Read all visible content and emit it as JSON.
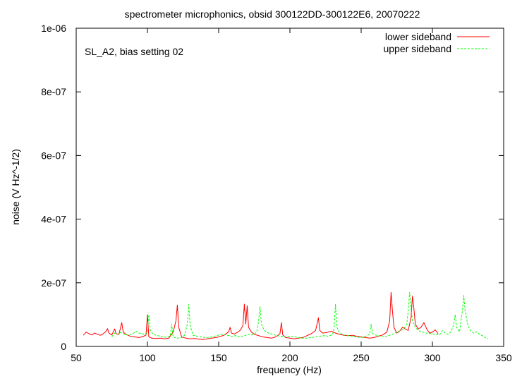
{
  "chart_data": {
    "type": "line",
    "title": "spectrometer microphonics, obsid 300122DD-300122E6, 20070222",
    "annotation": "SL_A2, bias setting 02",
    "xlabel": "frequency (Hz)",
    "ylabel": "noise (V Hz^-1/2)",
    "xlim": [
      50,
      350
    ],
    "ylim": [
      0,
      1e-06
    ],
    "x_ticks": [
      50,
      100,
      150,
      200,
      250,
      300,
      350
    ],
    "x_tick_labels": [
      "50",
      "100",
      "150",
      "200",
      "250",
      "300",
      "350"
    ],
    "y_ticks": [
      0,
      2e-07,
      4e-07,
      6e-07,
      8e-07,
      1e-06
    ],
    "y_tick_labels": [
      "0",
      "2e-07",
      "4e-07",
      "6e-07",
      "8e-07",
      "1e-06"
    ],
    "grid": false,
    "legend_position": "top-right",
    "series": [
      {
        "name": "lower sideband",
        "color": "#ff0000",
        "dash": "solid",
        "points": [
          [
            55,
            3.5e-08
          ],
          [
            57,
            4.5e-08
          ],
          [
            59,
            4e-08
          ],
          [
            61,
            3.6e-08
          ],
          [
            63,
            4.2e-08
          ],
          [
            65,
            3.8e-08
          ],
          [
            67,
            3.5e-08
          ],
          [
            69,
            4e-08
          ],
          [
            71,
            4.8e-08
          ],
          [
            72,
            5.6e-08
          ],
          [
            73,
            4.2e-08
          ],
          [
            75,
            3.6e-08
          ],
          [
            77,
            5.5e-08
          ],
          [
            78,
            4e-08
          ],
          [
            80,
            3.8e-08
          ],
          [
            82,
            7.5e-08
          ],
          [
            83,
            4.5e-08
          ],
          [
            85,
            3.8e-08
          ],
          [
            88,
            3.2e-08
          ],
          [
            91,
            3e-08
          ],
          [
            94,
            2.8e-08
          ],
          [
            97,
            3.1e-08
          ],
          [
            99,
            3.6e-08
          ],
          [
            100,
            1e-07
          ],
          [
            101,
            3e-08
          ],
          [
            103,
            2.6e-08
          ],
          [
            106,
            2.5e-08
          ],
          [
            109,
            2.6e-08
          ],
          [
            112,
            2.4e-08
          ],
          [
            115,
            2.6e-08
          ],
          [
            118,
            4.5e-08
          ],
          [
            120,
            8e-08
          ],
          [
            121,
            1.3e-07
          ],
          [
            122,
            6e-08
          ],
          [
            124,
            3e-08
          ],
          [
            127,
            2.6e-08
          ],
          [
            130,
            2.4e-08
          ],
          [
            133,
            2.5e-08
          ],
          [
            136,
            2.3e-08
          ],
          [
            139,
            2.2e-08
          ],
          [
            142,
            2.4e-08
          ],
          [
            145,
            2.6e-08
          ],
          [
            148,
            2.8e-08
          ],
          [
            151,
            3.1e-08
          ],
          [
            154,
            3.6e-08
          ],
          [
            157,
            4.6e-08
          ],
          [
            158,
            6e-08
          ],
          [
            159,
            4.2e-08
          ],
          [
            161,
            3.9e-08
          ],
          [
            163,
            4.4e-08
          ],
          [
            165,
            5e-08
          ],
          [
            167,
            6.5e-08
          ],
          [
            168,
            1.33e-07
          ],
          [
            169,
            7e-08
          ],
          [
            170,
            1.28e-07
          ],
          [
            171,
            6e-08
          ],
          [
            173,
            4.5e-08
          ],
          [
            175,
            3.8e-08
          ],
          [
            178,
            3.4e-08
          ],
          [
            181,
            3e-08
          ],
          [
            184,
            2.8e-08
          ],
          [
            187,
            2.6e-08
          ],
          [
            190,
            3e-08
          ],
          [
            193,
            4e-08
          ],
          [
            194,
            7.5e-08
          ],
          [
            195,
            3.6e-08
          ],
          [
            197,
            2.8e-08
          ],
          [
            200,
            2.6e-08
          ],
          [
            203,
            2.4e-08
          ],
          [
            206,
            2.6e-08
          ],
          [
            209,
            2.8e-08
          ],
          [
            212,
            3.4e-08
          ],
          [
            215,
            4e-08
          ],
          [
            218,
            5e-08
          ],
          [
            220,
            9e-08
          ],
          [
            221,
            5e-08
          ],
          [
            223,
            4.2e-08
          ],
          [
            226,
            4.4e-08
          ],
          [
            229,
            4.8e-08
          ],
          [
            232,
            4.2e-08
          ],
          [
            235,
            3.8e-08
          ],
          [
            238,
            3.5e-08
          ],
          [
            241,
            3.4e-08
          ],
          [
            244,
            3.5e-08
          ],
          [
            247,
            3.2e-08
          ],
          [
            250,
            3e-08
          ],
          [
            253,
            2.8e-08
          ],
          [
            256,
            2.6e-08
          ],
          [
            259,
            2.8e-08
          ],
          [
            262,
            3.2e-08
          ],
          [
            265,
            3.6e-08
          ],
          [
            268,
            4.5e-08
          ],
          [
            270,
            8e-08
          ],
          [
            271,
            1.7e-07
          ],
          [
            272,
            1.1e-07
          ],
          [
            273,
            6e-08
          ],
          [
            275,
            4.2e-08
          ],
          [
            277,
            4.8e-08
          ],
          [
            279,
            6e-08
          ],
          [
            281,
            5.5e-08
          ],
          [
            283,
            5e-08
          ],
          [
            285,
            9e-08
          ],
          [
            286,
            1.58e-07
          ],
          [
            287,
            1.2e-07
          ],
          [
            288,
            7e-08
          ],
          [
            290,
            5.5e-08
          ],
          [
            292,
            6e-08
          ],
          [
            294,
            7.5e-08
          ],
          [
            296,
            5.5e-08
          ],
          [
            298,
            4.2e-08
          ],
          [
            300,
            4.5e-08
          ],
          [
            302,
            5.2e-08
          ],
          [
            304,
            4e-08
          ]
        ]
      },
      {
        "name": "upper sideband",
        "color": "#00ff00",
        "dash": "dashed",
        "points": [
          [
            75,
            3e-08
          ],
          [
            77,
            4.2e-08
          ],
          [
            79,
            3.8e-08
          ],
          [
            81,
            4.4e-08
          ],
          [
            83,
            4e-08
          ],
          [
            85,
            3.6e-08
          ],
          [
            88,
            3.8e-08
          ],
          [
            90,
            4e-08
          ],
          [
            92,
            4.8e-08
          ],
          [
            94,
            4.2e-08
          ],
          [
            96,
            4e-08
          ],
          [
            98,
            3.8e-08
          ],
          [
            100,
            4.2e-08
          ],
          [
            101,
            1e-07
          ],
          [
            102,
            5e-08
          ],
          [
            104,
            3.8e-08
          ],
          [
            107,
            3.4e-08
          ],
          [
            110,
            3.1e-08
          ],
          [
            113,
            2.9e-08
          ],
          [
            116,
            3.2e-08
          ],
          [
            117,
            7e-08
          ],
          [
            118,
            3e-08
          ],
          [
            121,
            2.6e-08
          ],
          [
            124,
            2.8e-08
          ],
          [
            126,
            3.5e-08
          ],
          [
            128,
            7e-08
          ],
          [
            129,
            1.32e-07
          ],
          [
            130,
            6.5e-08
          ],
          [
            132,
            3.5e-08
          ],
          [
            135,
            3.2e-08
          ],
          [
            138,
            3e-08
          ],
          [
            141,
            2.8e-08
          ],
          [
            144,
            2.9e-08
          ],
          [
            147,
            3.2e-08
          ],
          [
            150,
            3.6e-08
          ],
          [
            153,
            3.8e-08
          ],
          [
            156,
            3.5e-08
          ],
          [
            159,
            3.2e-08
          ],
          [
            162,
            3.4e-08
          ],
          [
            165,
            3e-08
          ],
          [
            168,
            3.4e-08
          ],
          [
            171,
            3.8e-08
          ],
          [
            173,
            3.6e-08
          ],
          [
            175,
            3.8e-08
          ],
          [
            177,
            5e-08
          ],
          [
            178,
            8e-08
          ],
          [
            179,
            1.25e-07
          ],
          [
            180,
            7e-08
          ],
          [
            182,
            5e-08
          ],
          [
            185,
            4.2e-08
          ],
          [
            188,
            3.8e-08
          ],
          [
            191,
            3.4e-08
          ],
          [
            194,
            3.2e-08
          ],
          [
            197,
            3e-08
          ],
          [
            200,
            3.2e-08
          ],
          [
            203,
            3e-08
          ],
          [
            206,
            2.8e-08
          ],
          [
            209,
            2.6e-08
          ],
          [
            212,
            2.6e-08
          ],
          [
            215,
            2.8e-08
          ],
          [
            218,
            3e-08
          ],
          [
            221,
            3.2e-08
          ],
          [
            224,
            3.4e-08
          ],
          [
            227,
            3.2e-08
          ],
          [
            230,
            3.8e-08
          ],
          [
            231,
            6e-08
          ],
          [
            232,
            1.32e-07
          ],
          [
            233,
            6e-08
          ],
          [
            235,
            4.2e-08
          ],
          [
            238,
            3.6e-08
          ],
          [
            241,
            3.4e-08
          ],
          [
            244,
            3.2e-08
          ],
          [
            247,
            3e-08
          ],
          [
            250,
            2.8e-08
          ],
          [
            253,
            3.2e-08
          ],
          [
            256,
            3.8e-08
          ],
          [
            257,
            7e-08
          ],
          [
            258,
            4e-08
          ],
          [
            260,
            3.6e-08
          ],
          [
            263,
            3.2e-08
          ],
          [
            266,
            3e-08
          ],
          [
            269,
            3.4e-08
          ],
          [
            272,
            3.8e-08
          ],
          [
            275,
            4.5e-08
          ],
          [
            278,
            5e-08
          ],
          [
            280,
            5.5e-08
          ],
          [
            282,
            7e-08
          ],
          [
            283,
            1.1e-07
          ],
          [
            284,
            1.7e-07
          ],
          [
            285,
            1.2e-07
          ],
          [
            286,
            8e-08
          ],
          [
            288,
            6e-08
          ],
          [
            290,
            5e-08
          ],
          [
            293,
            4.5e-08
          ],
          [
            296,
            4.2e-08
          ],
          [
            299,
            4e-08
          ],
          [
            302,
            3.8e-08
          ],
          [
            305,
            3.6e-08
          ],
          [
            307,
            5e-08
          ],
          [
            309,
            4.2e-08
          ],
          [
            311,
            3.8e-08
          ],
          [
            313,
            4.6e-08
          ],
          [
            315,
            7e-08
          ],
          [
            316,
            1e-07
          ],
          [
            317,
            6e-08
          ],
          [
            319,
            4.6e-08
          ],
          [
            321,
            1.1e-07
          ],
          [
            322,
            1.6e-07
          ],
          [
            323,
            1.1e-07
          ],
          [
            325,
            6.5e-08
          ],
          [
            327,
            4.8e-08
          ],
          [
            329,
            4.2e-08
          ],
          [
            331,
            4.6e-08
          ],
          [
            333,
            3.8e-08
          ],
          [
            335,
            3.4e-08
          ],
          [
            337,
            2.8e-08
          ],
          [
            339,
            2.4e-08
          ]
        ]
      }
    ]
  }
}
